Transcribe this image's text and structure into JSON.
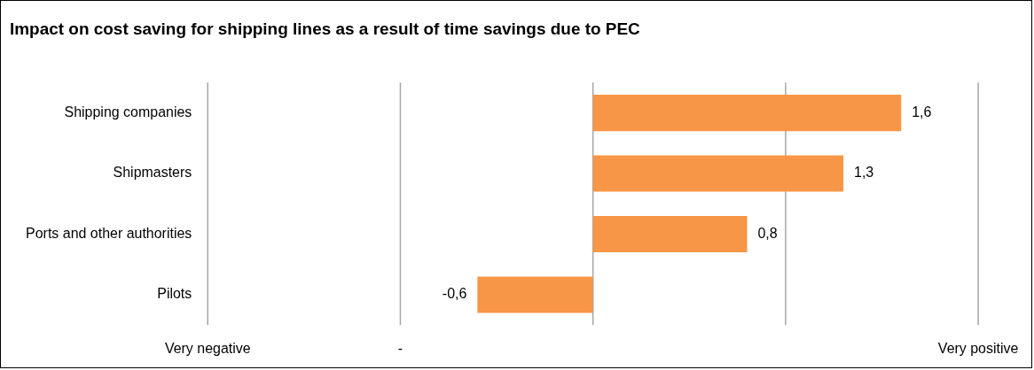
{
  "chart_data": {
    "type": "bar",
    "orientation": "horizontal",
    "title": "Impact on cost saving for shipping lines as a result of time savings due to PEC",
    "categories": [
      "Shipping companies",
      "Shipmasters",
      "Ports and other authorities",
      "Pilots"
    ],
    "values": [
      1.6,
      1.3,
      0.8,
      -0.6
    ],
    "value_labels": [
      "1,6",
      "1,3",
      "0,8",
      "-0,6"
    ],
    "color": "#f79646",
    "xlim": [
      -2,
      2
    ],
    "ref_lines": [
      {
        "axis": "x",
        "value": -2,
        "label": "Very negative",
        "color": "#a6a6a6"
      },
      {
        "axis": "x",
        "value": -1,
        "label": "-",
        "color": "#a6a6a6"
      },
      {
        "axis": "x",
        "value": 0,
        "label": null,
        "color": "#a6a6a6"
      },
      {
        "axis": "x",
        "value": 1,
        "label": null,
        "color": "#a6a6a6"
      },
      {
        "axis": "x",
        "value": 2,
        "label": "Very positive",
        "color": "#a6a6a6"
      }
    ],
    "legend": false
  }
}
